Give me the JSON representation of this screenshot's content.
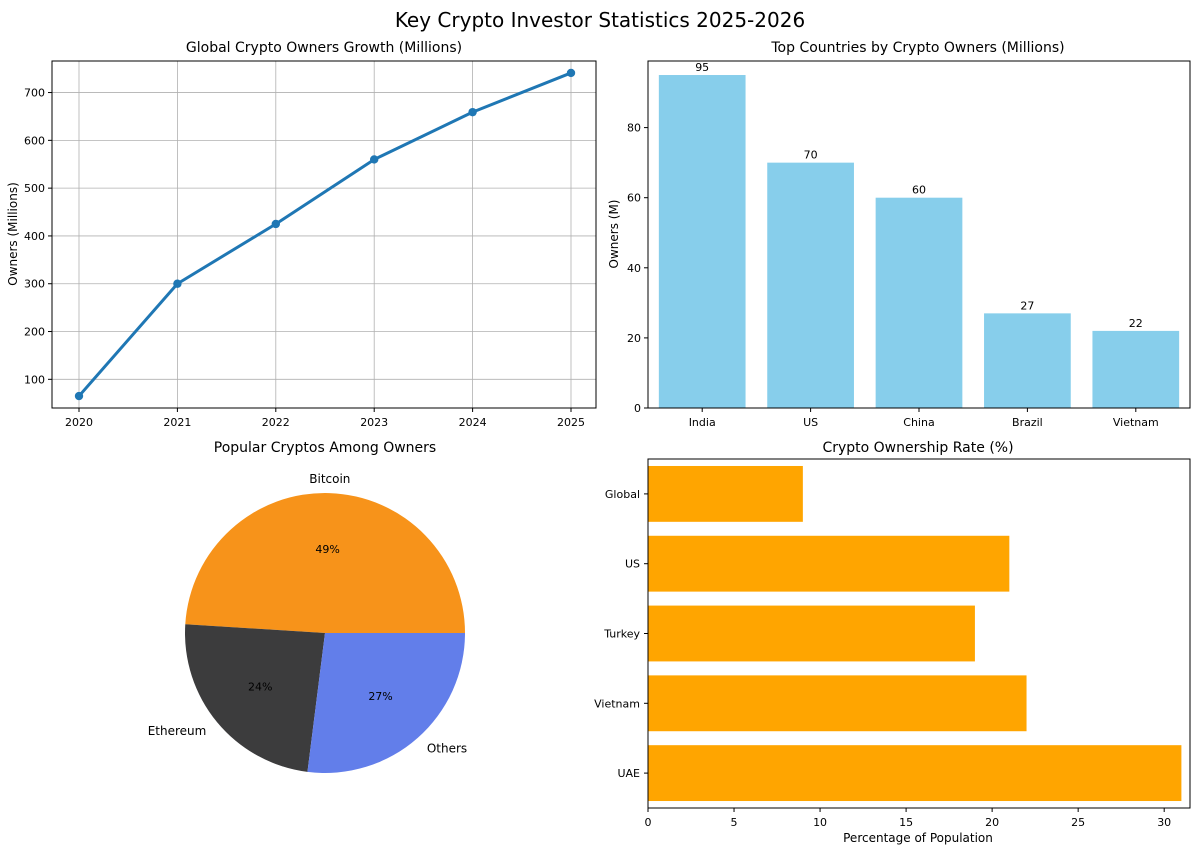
{
  "figure": {
    "title": "Key Crypto Investor Statistics 2025-2026"
  },
  "chart_data": [
    {
      "type": "line",
      "title": "Global Crypto Owners Growth (Millions)",
      "xlabel": "",
      "ylabel": "Owners (Millions)",
      "x": [
        2020,
        2021,
        2022,
        2023,
        2024,
        2025
      ],
      "series": [
        {
          "values": [
            65,
            300,
            425,
            560,
            659,
            741
          ]
        }
      ],
      "ylim": [
        40,
        766
      ],
      "yticks": [
        100,
        200,
        300,
        400,
        500,
        600,
        700
      ],
      "grid": true,
      "color": "#1f77b4"
    },
    {
      "type": "bar",
      "title": "Top Countries by Crypto Owners (Millions)",
      "xlabel": "",
      "ylabel": "Owners (M)",
      "categories": [
        "India",
        "US",
        "China",
        "Brazil",
        "Vietnam"
      ],
      "values": [
        95,
        70,
        60,
        27,
        22
      ],
      "data_labels": [
        "95",
        "70",
        "60",
        "27",
        "22"
      ],
      "ylim": [
        0,
        99
      ],
      "yticks": [
        0,
        20,
        40,
        60,
        80
      ],
      "grid": false,
      "color": "#87ceeb"
    },
    {
      "type": "pie",
      "title": "Popular Cryptos Among Owners",
      "categories": [
        "Bitcoin",
        "Ethereum",
        "Others"
      ],
      "values": [
        49,
        24,
        27
      ],
      "data_labels": [
        "49%",
        "24%",
        "27%"
      ],
      "colors": [
        "#f7931a",
        "#3c3c3d",
        "#627eea"
      ]
    },
    {
      "type": "bar",
      "orientation": "horizontal",
      "title": "Crypto Ownership Rate (%)",
      "xlabel": "Percentage of Population",
      "ylabel": "",
      "categories": [
        "UAE",
        "Vietnam",
        "Turkey",
        "US",
        "Global"
      ],
      "values": [
        31,
        22,
        19,
        21,
        9
      ],
      "xlim": [
        0,
        31.5
      ],
      "xticks": [
        0,
        5,
        10,
        15,
        20,
        25,
        30
      ],
      "grid": false,
      "color": "#ffa500"
    }
  ]
}
